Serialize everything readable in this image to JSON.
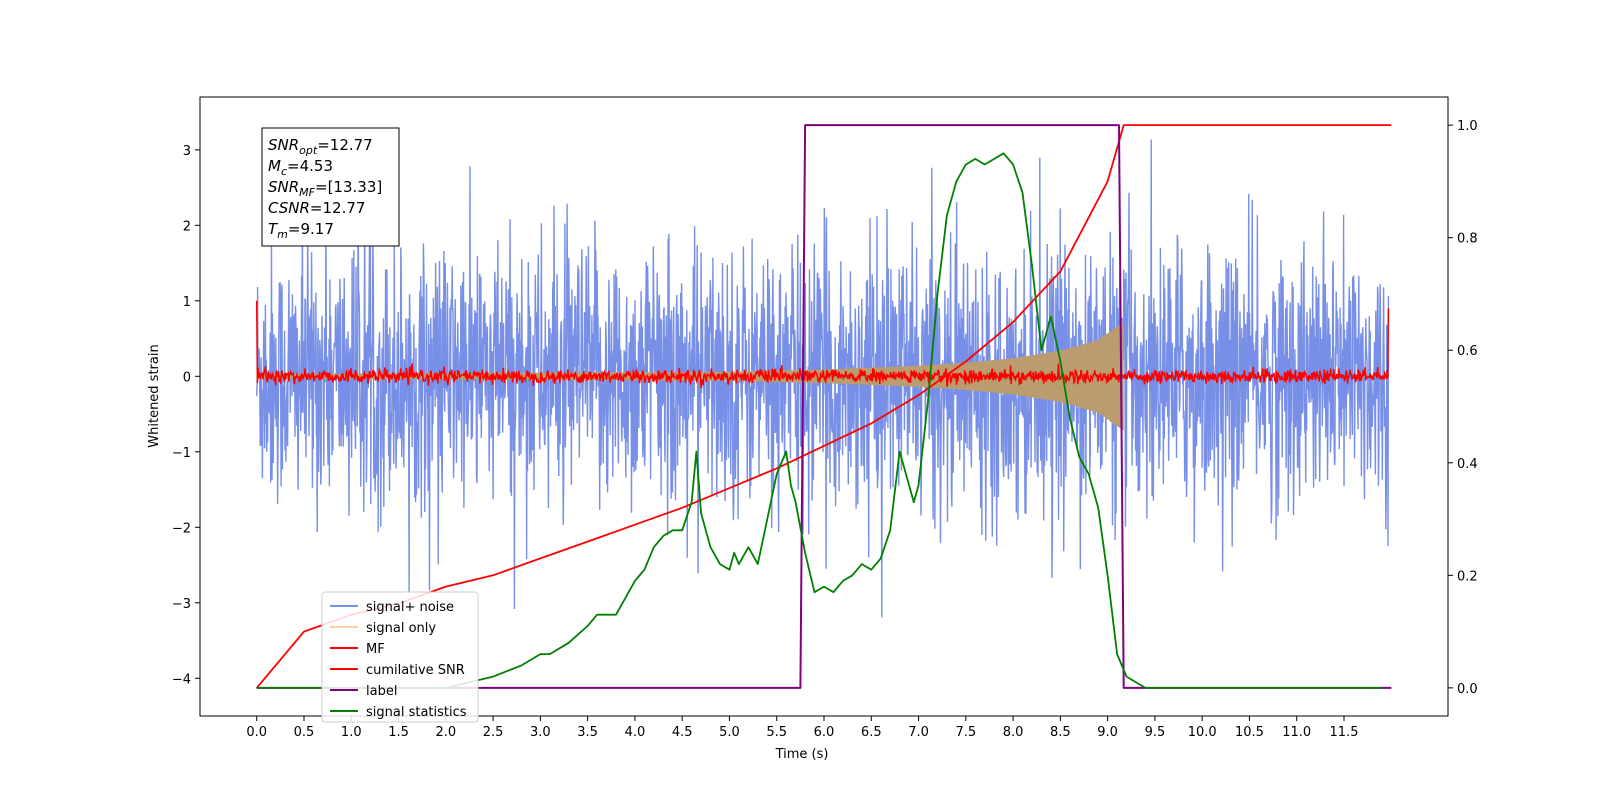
{
  "chart_data": {
    "type": "line",
    "title": "",
    "xlabel": "Time (s)",
    "ylabel": "Whitened strain",
    "y2label": "",
    "xlim": [
      -0.6,
      12.6
    ],
    "ylim": [
      -4.5,
      3.7
    ],
    "y2lim": [
      -0.05,
      1.05
    ],
    "x_ticks": [
      0.0,
      0.5,
      1.0,
      1.5,
      2.0,
      2.5,
      3.0,
      3.5,
      4.0,
      4.5,
      5.0,
      5.5,
      6.0,
      6.5,
      7.0,
      7.5,
      8.0,
      8.5,
      9.0,
      9.5,
      10.0,
      10.5,
      11.0,
      11.5
    ],
    "x_tick_labels": [
      "0.0",
      "0.5",
      "1.0",
      "1.5",
      "2.0",
      "2.5",
      "3.0",
      "3.5",
      "4.0",
      "4.5",
      "5.0",
      "5.5",
      "6.0",
      "6.5",
      "7.0",
      "7.5",
      "8.0",
      "8.5",
      "9.0",
      "9.5",
      "10.0",
      "10.5",
      "11.0",
      "11.5"
    ],
    "y_ticks": [
      -4,
      -3,
      -2,
      -1,
      0,
      1,
      2,
      3
    ],
    "y_tick_labels": [
      "−4",
      "−3",
      "−2",
      "−1",
      "0",
      "1",
      "2",
      "3"
    ],
    "y2_ticks": [
      0.0,
      0.2,
      0.4,
      0.6,
      0.8,
      1.0
    ],
    "y2_tick_labels": [
      "0.0",
      "0.2",
      "0.4",
      "0.6",
      "0.8",
      "1.0"
    ],
    "grid": false,
    "legend_position": "lower-left",
    "annotation": [
      {
        "base": "SNR",
        "sub": "opt",
        "value": "=12.77"
      },
      {
        "base": "M",
        "sub": "c",
        "value": "=4.53"
      },
      {
        "base": "SNR",
        "sub": "MF",
        "value": "=[13.33]"
      },
      {
        "base": "CSNR",
        "sub": "",
        "value": "=12.77"
      },
      {
        "base": "T",
        "sub": "m",
        "value": "=9.17"
      }
    ],
    "series": [
      {
        "name": "signal+ noise",
        "axis": "left",
        "color": "#778fe6",
        "style": "dense noise, approx. amplitude ±2.2 with peaks to ±3.3",
        "x_range": [
          0.0,
          11.97
        ],
        "envelope": [
          [
            0.0,
            1.9
          ],
          [
            11.97,
            1.9
          ]
        ]
      },
      {
        "name": "signal only",
        "axis": "left",
        "color": "#ffb060",
        "style": "chirp envelope growing until merger",
        "envelope": [
          [
            0.0,
            0.03
          ],
          [
            5.0,
            0.06
          ],
          [
            6.0,
            0.09
          ],
          [
            7.0,
            0.14
          ],
          [
            7.5,
            0.18
          ],
          [
            8.0,
            0.24
          ],
          [
            8.5,
            0.34
          ],
          [
            8.9,
            0.48
          ],
          [
            9.1,
            0.66
          ],
          [
            9.17,
            0.72
          ]
        ]
      },
      {
        "name": "MF",
        "axis": "left",
        "color": "#ff0000",
        "style": "noise around 0, approx. ±0.1",
        "x_range": [
          0.0,
          11.97
        ],
        "envelope": [
          [
            0.0,
            0.1
          ],
          [
            11.97,
            0.1
          ]
        ],
        "edges": [
          [
            0.0,
            1.0
          ],
          [
            11.97,
            0.9
          ]
        ]
      },
      {
        "name": "cumilative SNR",
        "axis": "right",
        "color": "#ff0000",
        "x": [
          0.0,
          0.5,
          1.0,
          1.5,
          2.0,
          2.5,
          3.0,
          3.5,
          4.0,
          4.5,
          5.0,
          5.5,
          6.0,
          6.5,
          7.0,
          7.5,
          8.0,
          8.5,
          9.0,
          9.17,
          12.0
        ],
        "y": [
          0.0,
          0.1,
          0.13,
          0.15,
          0.18,
          0.2,
          0.23,
          0.26,
          0.29,
          0.32,
          0.355,
          0.39,
          0.43,
          0.47,
          0.52,
          0.58,
          0.65,
          0.74,
          0.9,
          1.0,
          1.0
        ]
      },
      {
        "name": "label",
        "axis": "right",
        "color": "#800080",
        "x": [
          0.0,
          5.75,
          5.8,
          9.12,
          9.17,
          12.0
        ],
        "y": [
          0.0,
          0.0,
          1.0,
          1.0,
          0.0,
          0.0
        ]
      },
      {
        "name": "signal statistics",
        "axis": "right",
        "color": "#008000",
        "x": [
          0.0,
          2.0,
          2.5,
          2.8,
          3.0,
          3.1,
          3.3,
          3.5,
          3.6,
          3.8,
          3.9,
          4.0,
          4.1,
          4.2,
          4.3,
          4.4,
          4.5,
          4.6,
          4.65,
          4.7,
          4.8,
          4.9,
          5.0,
          5.05,
          5.1,
          5.2,
          5.3,
          5.4,
          5.5,
          5.6,
          5.65,
          5.7,
          5.8,
          5.9,
          6.0,
          6.1,
          6.2,
          6.3,
          6.4,
          6.5,
          6.6,
          6.7,
          6.8,
          6.9,
          6.95,
          7.0,
          7.1,
          7.2,
          7.3,
          7.4,
          7.5,
          7.6,
          7.7,
          7.8,
          7.9,
          8.0,
          8.1,
          8.2,
          8.3,
          8.4,
          8.5,
          8.6,
          8.7,
          8.8,
          8.9,
          9.0,
          9.1,
          9.2,
          9.4,
          9.6,
          10.0,
          11.0,
          11.9
        ],
        "y": [
          0.0,
          0.0,
          0.02,
          0.04,
          0.06,
          0.06,
          0.08,
          0.11,
          0.13,
          0.13,
          0.16,
          0.19,
          0.21,
          0.25,
          0.27,
          0.28,
          0.28,
          0.33,
          0.42,
          0.31,
          0.25,
          0.22,
          0.21,
          0.24,
          0.22,
          0.25,
          0.22,
          0.3,
          0.38,
          0.42,
          0.36,
          0.33,
          0.24,
          0.17,
          0.18,
          0.17,
          0.19,
          0.2,
          0.22,
          0.21,
          0.23,
          0.28,
          0.42,
          0.36,
          0.33,
          0.36,
          0.51,
          0.7,
          0.84,
          0.9,
          0.93,
          0.94,
          0.93,
          0.94,
          0.95,
          0.93,
          0.88,
          0.75,
          0.6,
          0.66,
          0.58,
          0.48,
          0.41,
          0.38,
          0.32,
          0.2,
          0.06,
          0.02,
          0.0,
          0.0,
          0.0,
          0.0,
          0.0
        ]
      }
    ]
  },
  "colors": {
    "noise": "#778fe6",
    "signal_fill": "#bb9c6e",
    "mf": "#ff0000",
    "csnr": "#ff0000",
    "label": "#800080",
    "stats": "#008000"
  }
}
